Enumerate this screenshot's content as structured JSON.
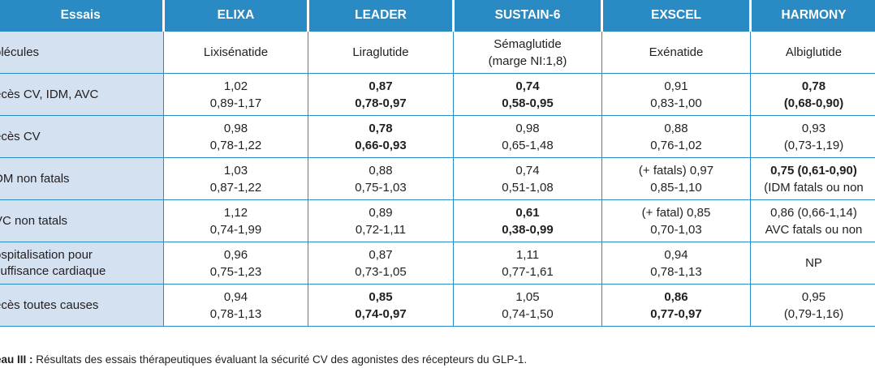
{
  "headers": [
    "Essais",
    "ELIXA",
    "LEADER",
    "SUSTAIN-6",
    "EXSCEL",
    "HARMONY"
  ],
  "rows": [
    {
      "label": "olécules",
      "cells": [
        {
          "l1": "Lixisénatide",
          "l2": "",
          "bold": false
        },
        {
          "l1": "Liraglutide",
          "l2": "",
          "bold": false
        },
        {
          "l1": "Sémaglutide",
          "l2": "(marge NI:1,8)",
          "bold": false
        },
        {
          "l1": "Exénatide",
          "l2": "",
          "bold": false
        },
        {
          "l1": "Albiglutide",
          "l2": "",
          "bold": false
        }
      ]
    },
    {
      "label": "écès CV, IDM, AVC",
      "cells": [
        {
          "l1": "1,02",
          "l2": "0,89-1,17",
          "bold": false
        },
        {
          "l1": "0,87",
          "l2": "0,78-0,97",
          "bold": true
        },
        {
          "l1": "0,74",
          "l2": "0,58-0,95",
          "bold": true
        },
        {
          "l1": "0,91",
          "l2": "0,83-1,00",
          "bold": false
        },
        {
          "l1": "0,78",
          "l2": "(0,68-0,90)",
          "bold": true
        }
      ]
    },
    {
      "label": "écès CV",
      "cells": [
        {
          "l1": "0,98",
          "l2": "0,78-1,22",
          "bold": false
        },
        {
          "l1": "0,78",
          "l2": "0,66-0,93",
          "bold": true
        },
        {
          "l1": "0,98",
          "l2": "0,65-1,48",
          "bold": false
        },
        {
          "l1": "0,88",
          "l2": "0,76-1,02",
          "bold": false
        },
        {
          "l1": "0,93",
          "l2": "(0,73-1,19)",
          "bold": false
        }
      ]
    },
    {
      "label": "DM non fatals",
      "cells": [
        {
          "l1": "1,03",
          "l2": "0,87-1,22",
          "bold": false
        },
        {
          "l1": "0,88",
          "l2": "0,75-1,03",
          "bold": false
        },
        {
          "l1": "0,74",
          "l2": "0,51-1,08",
          "bold": false
        },
        {
          "l1": "(+ fatals) 0,97",
          "l2": "0,85-1,10",
          "bold": false
        },
        {
          "l1": "0,75 (0,61-0,90)",
          "l2": "(IDM fatals ou non",
          "bold": false,
          "bold1": true
        }
      ]
    },
    {
      "label": "VC non tatals",
      "cells": [
        {
          "l1": "1,12",
          "l2": "0,74-1,99",
          "bold": false
        },
        {
          "l1": "0,89",
          "l2": "0,72-1,11",
          "bold": false
        },
        {
          "l1": "0,61",
          "l2": "0,38-0,99",
          "bold": true
        },
        {
          "l1": "(+ fatal) 0,85",
          "l2": "0,70-1,03",
          "bold": false
        },
        {
          "l1": "0,86 (0,66-1,14)",
          "l2": "AVC fatals ou non",
          "bold": false
        }
      ]
    },
    {
      "label": "ospitalisation pour",
      "label2": "suffisance cardiaque",
      "cells": [
        {
          "l1": "0,96",
          "l2": "0,75-1,23",
          "bold": false
        },
        {
          "l1": "0,87",
          "l2": "0,73-1,05",
          "bold": false
        },
        {
          "l1": "1,11",
          "l2": "0,77-1,61",
          "bold": false
        },
        {
          "l1": "0,94",
          "l2": "0,78-1,13",
          "bold": false
        },
        {
          "l1": "NP",
          "l2": "",
          "bold": false
        }
      ]
    },
    {
      "label": "écès toutes causes",
      "cells": [
        {
          "l1": "0,94",
          "l2": "0,78-1,13",
          "bold": false
        },
        {
          "l1": "0,85",
          "l2": "0,74-0,97",
          "bold": true
        },
        {
          "l1": "1,05",
          "l2": "0,74-1,50",
          "bold": false
        },
        {
          "l1": "0,86",
          "l2": "0,77-0,97",
          "bold": true
        },
        {
          "l1": "0,95",
          "l2": "(0,79-1,16)",
          "bold": false
        }
      ]
    }
  ],
  "caption": {
    "label": "eau III :",
    "text": " Résultats des essais thérapeutiques évaluant la sécurité CV des agonistes des récepteurs du GLP-1."
  }
}
